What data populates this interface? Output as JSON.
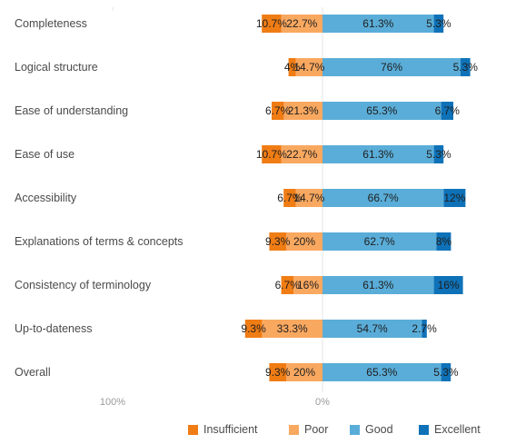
{
  "chart_data": {
    "type": "bar",
    "orientation": "horizontal",
    "stacking": "diverging",
    "categories": [
      "Completeness",
      "Logical structure",
      "Ease of understanding",
      "Ease of use",
      "Accessibility",
      "Explanations of terms & concepts",
      "Consistency of terminology",
      "Up-to-dateness",
      "Overall"
    ],
    "series": [
      {
        "name": "Insufficient",
        "color": "#f07c14",
        "side": "negative",
        "values": [
          10.7,
          4,
          6.7,
          10.7,
          6.7,
          9.3,
          6.7,
          9.3,
          9.3
        ],
        "labels": [
          "10.7%",
          "4%",
          "6.7%",
          "10.7%",
          "6.7%",
          "9.3%",
          "6.7%",
          "9.3%",
          "9.3%"
        ]
      },
      {
        "name": "Poor",
        "color": "#f9a860",
        "side": "negative",
        "values": [
          22.7,
          14.7,
          21.3,
          22.7,
          14.7,
          20,
          16,
          33.3,
          20
        ],
        "labels": [
          "22.7%",
          "14.7%",
          "21.3%",
          "22.7%",
          "14.7%",
          "20%",
          "16%",
          "33.3%",
          "20%"
        ]
      },
      {
        "name": "Good",
        "color": "#5aadd8",
        "side": "positive",
        "values": [
          61.3,
          76,
          65.3,
          61.3,
          66.7,
          62.7,
          61.3,
          54.7,
          65.3
        ],
        "labels": [
          "61.3%",
          "76%",
          "65.3%",
          "61.3%",
          "66.7%",
          "62.7%",
          "61.3%",
          "54.7%",
          "65.3%"
        ]
      },
      {
        "name": "Excellent",
        "color": "#0f72b8",
        "side": "positive",
        "values": [
          5.3,
          5.3,
          6.7,
          5.3,
          12,
          8,
          16,
          2.7,
          5.3
        ],
        "labels": [
          "5.3%",
          "5.3%",
          "6.7%",
          "5.3%",
          "12%",
          "8%",
          "16%",
          "2.7%",
          "5.3%"
        ]
      }
    ],
    "axis_ticks": [
      "100%",
      "0%"
    ],
    "xlim": [
      -100,
      100
    ],
    "grid": false,
    "legend_position": "bottom"
  }
}
